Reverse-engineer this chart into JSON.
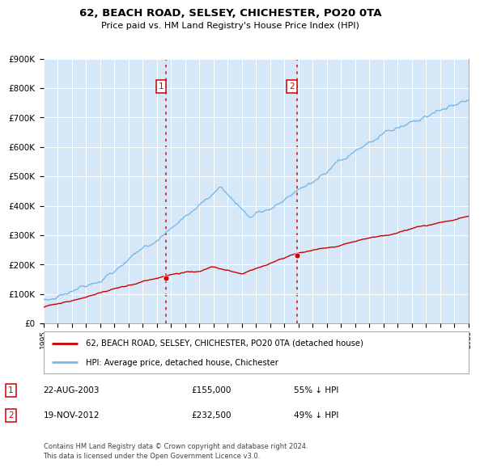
{
  "title": "62, BEACH ROAD, SELSEY, CHICHESTER, PO20 0TA",
  "subtitle": "Price paid vs. HM Land Registry's House Price Index (HPI)",
  "ylim": [
    0,
    900000
  ],
  "yticks": [
    0,
    100000,
    200000,
    300000,
    400000,
    500000,
    600000,
    700000,
    800000,
    900000
  ],
  "ytick_labels": [
    "£0",
    "£100K",
    "£200K",
    "£300K",
    "£400K",
    "£500K",
    "£600K",
    "£700K",
    "£800K",
    "£900K"
  ],
  "hpi_color": "#7ab8e8",
  "price_color": "#cc0000",
  "vline_color": "#cc0000",
  "purchase1": {
    "date_num": 2003.65,
    "price": 155000,
    "label": "1",
    "date_str": "22-AUG-2003",
    "pct": "55% ↓ HPI"
  },
  "purchase2": {
    "date_num": 2012.9,
    "price": 232500,
    "label": "2",
    "date_str": "19-NOV-2012",
    "pct": "49% ↓ HPI"
  },
  "legend_property": "62, BEACH ROAD, SELSEY, CHICHESTER, PO20 0TA (detached house)",
  "legend_hpi": "HPI: Average price, detached house, Chichester",
  "footer": "Contains HM Land Registry data © Crown copyright and database right 2024.\nThis data is licensed under the Open Government Licence v3.0.",
  "xmin": 1995,
  "xmax": 2025,
  "plot_bg": "#d6e8f7"
}
